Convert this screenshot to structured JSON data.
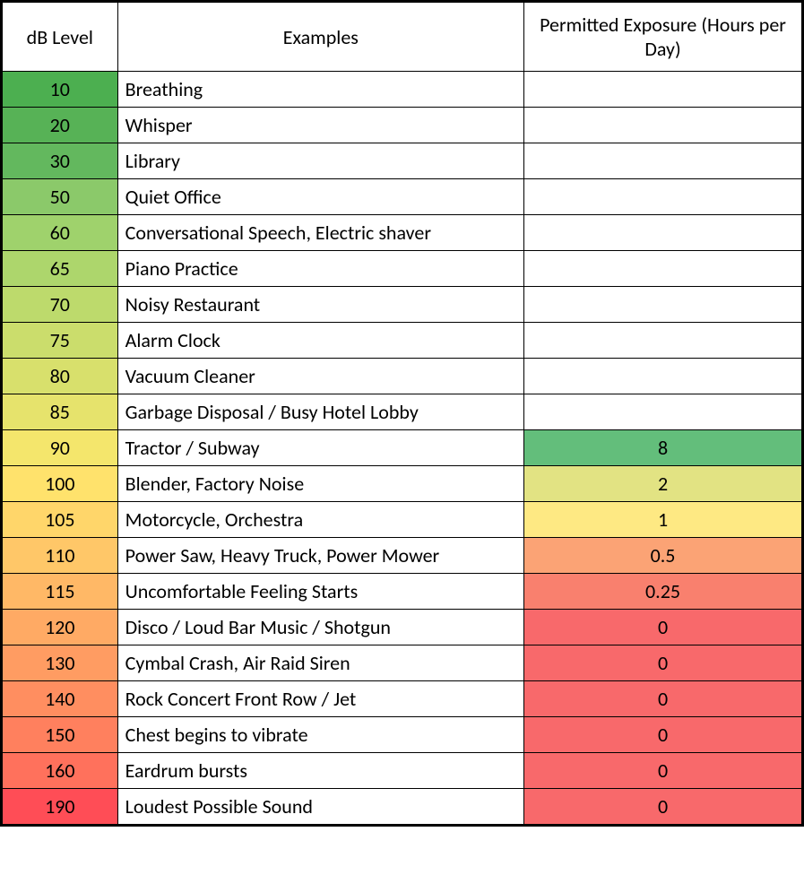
{
  "headers": {
    "col1": "dB Level",
    "col2": "Examples",
    "col3": "Permitted Exposure (Hours per Day)"
  },
  "header_bg": "#ffffff",
  "rows": [
    {
      "db": "10",
      "db_color": "#4caf50",
      "example": "Breathing",
      "exp": "",
      "exp_color": "#ffffff"
    },
    {
      "db": "20",
      "db_color": "#57b256",
      "example": "Whisper",
      "exp": "",
      "exp_color": "#ffffff"
    },
    {
      "db": "30",
      "db_color": "#63b85e",
      "example": "Library",
      "exp": "",
      "exp_color": "#ffffff"
    },
    {
      "db": "50",
      "db_color": "#8bc96a",
      "example": "Quiet Office",
      "exp": "",
      "exp_color": "#ffffff"
    },
    {
      "db": "60",
      "db_color": "#9fd26c",
      "example": "Conversational Speech, Electric shaver",
      "exp": "",
      "exp_color": "#ffffff"
    },
    {
      "db": "65",
      "db_color": "#add66c",
      "example": "Piano Practice",
      "exp": "",
      "exp_color": "#ffffff"
    },
    {
      "db": "70",
      "db_color": "#bdda6c",
      "example": "Noisy Restaurant",
      "exp": "",
      "exp_color": "#ffffff"
    },
    {
      "db": "75",
      "db_color": "#cbdd6c",
      "example": "Alarm Clock",
      "exp": "",
      "exp_color": "#ffffff"
    },
    {
      "db": "80",
      "db_color": "#d8e06c",
      "example": "Vacuum Cleaner",
      "exp": "",
      "exp_color": "#ffffff"
    },
    {
      "db": "85",
      "db_color": "#e6e36c",
      "example": "Garbage Disposal / Busy Hotel Lobby",
      "exp": "",
      "exp_color": "#ffffff"
    },
    {
      "db": "90",
      "db_color": "#f4e66c",
      "example": "Tractor / Subway",
      "exp": "8",
      "exp_color": "#63be7b"
    },
    {
      "db": "100",
      "db_color": "#ffe26c",
      "example": "Blender, Factory Noise",
      "exp": "2",
      "exp_color": "#e2e383"
    },
    {
      "db": "105",
      "db_color": "#ffd66a",
      "example": "Motorcycle, Orchestra",
      "exp": "1",
      "exp_color": "#fee983"
    },
    {
      "db": "110",
      "db_color": "#ffc768",
      "example": "Power Saw, Heavy Truck, Power Mower",
      "exp": "0.5",
      "exp_color": "#fba375"
    },
    {
      "db": "115",
      "db_color": "#ffb866",
      "example": "Uncomfortable Feeling Starts",
      "exp": "0.25",
      "exp_color": "#f9806e"
    },
    {
      "db": "120",
      "db_color": "#ffaa64",
      "example": "Disco / Loud Bar Music / Shotgun",
      "exp": "0",
      "exp_color": "#f8696b"
    },
    {
      "db": "130",
      "db_color": "#ff9c62",
      "example": "Cymbal Crash, Air Raid Siren",
      "exp": "0",
      "exp_color": "#f8696b"
    },
    {
      "db": "140",
      "db_color": "#ff8e60",
      "example": "Rock Concert Front Row / Jet",
      "exp": "0",
      "exp_color": "#f8696b"
    },
    {
      "db": "150",
      "db_color": "#ff805e",
      "example": "Chest begins to vibrate",
      "exp": "0",
      "exp_color": "#f8696b"
    },
    {
      "db": "160",
      "db_color": "#ff715c",
      "example": "Eardrum bursts",
      "exp": "0",
      "exp_color": "#f8696b"
    },
    {
      "db": "190",
      "db_color": "#ff4d56",
      "example": "Loudest Possible Sound",
      "exp": "0",
      "exp_color": "#f8696b"
    }
  ]
}
